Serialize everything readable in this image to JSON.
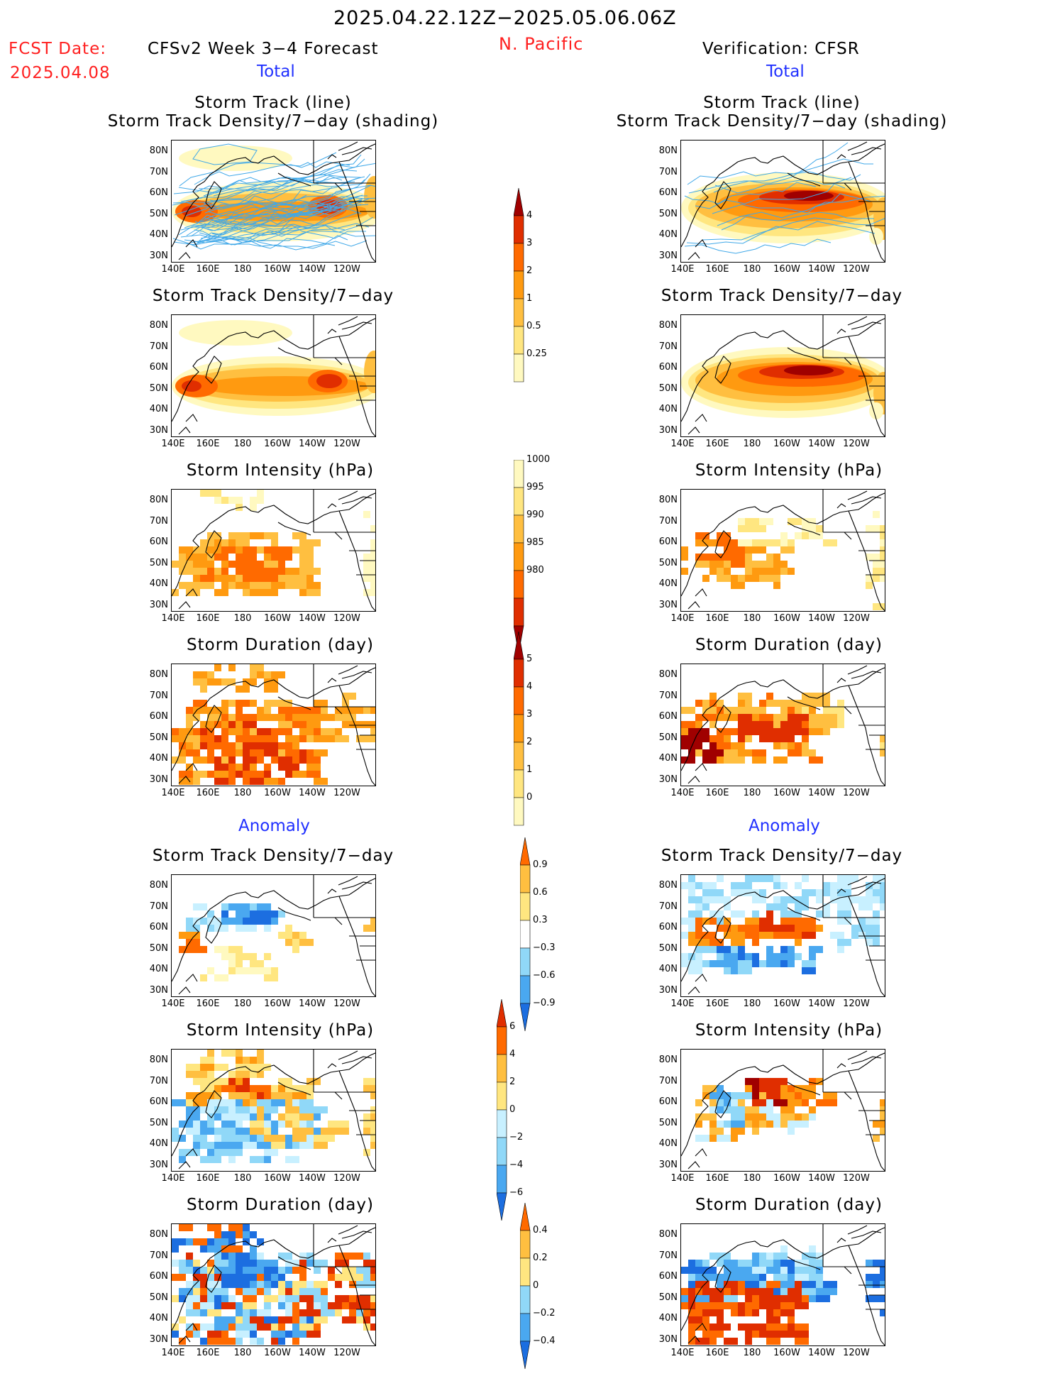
{
  "header": {
    "date_range": "2025.04.22.12Z−2025.05.06.06Z",
    "fcst_label": "FCST Date:",
    "fcst_date": "2025.04.08",
    "model": "CFSv2 Week 3−4 Forecast",
    "region": "N. Pacific",
    "verification": "Verification: CFSR",
    "total_left": "Total",
    "total_right": "Total",
    "anomaly_left": "Anomaly",
    "anomaly_right": "Anomaly"
  },
  "panel_titles": {
    "track_line": "Storm Track (line)",
    "track_shading": "Storm Track Density/7−day (shading)",
    "density": "Storm Track Density/7−day",
    "intensity": "Storm Intensity (hPa)",
    "duration": "Storm Duration (day)"
  },
  "axes": {
    "lat": [
      "80N",
      "70N",
      "60N",
      "50N",
      "40N",
      "30N"
    ],
    "lon": [
      "140E",
      "160E",
      "180",
      "160W",
      "140W",
      "120W"
    ]
  },
  "colorbars": {
    "density": [
      "4",
      "3",
      "2",
      "1",
      "0.5",
      "0.25"
    ],
    "intensity": [
      "1000",
      "995",
      "990",
      "985",
      "980"
    ],
    "duration": [
      "5",
      "4",
      "3",
      "2",
      "1",
      "0"
    ],
    "density_anom": [
      "0.9",
      "0.6",
      "0.3",
      "−0.3",
      "−0.6",
      "−0.9"
    ],
    "intensity_anom": [
      "6",
      "4",
      "2",
      "0",
      "−2",
      "−4",
      "−6"
    ],
    "duration_anom": [
      "0.4",
      "0.2",
      "0",
      "−0.2",
      "−0.4"
    ]
  },
  "colors": {
    "warm": [
      "#fff9c0",
      "#ffe680",
      "#ffbf40",
      "#ff9a10",
      "#ff6a00",
      "#e02e00",
      "#a00000"
    ],
    "cool": [
      "#c8f0ff",
      "#90d8f8",
      "#4aa8f0",
      "#1c6ee0"
    ],
    "track_line": "#40a8e8"
  }
}
